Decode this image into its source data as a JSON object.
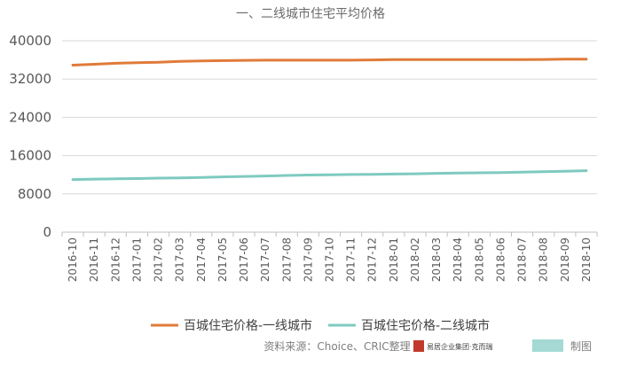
{
  "chart_data": {
    "type": "line",
    "title": "一、二线城市住宅平均价格",
    "categories": [
      "2016-10",
      "2016-11",
      "2016-12",
      "2017-01",
      "2017-02",
      "2017-03",
      "2017-04",
      "2017-05",
      "2017-06",
      "2017-07",
      "2017-08",
      "2017-09",
      "2017-10",
      "2017-11",
      "2017-12",
      "2018-01",
      "2018-02",
      "2018-03",
      "2018-04",
      "2018-05",
      "2018-06",
      "2018-07",
      "2018-08",
      "2018-09",
      "2018-10"
    ],
    "series": [
      {
        "name": "百城住宅价格-一线城市",
        "color": "#e07b39",
        "values": [
          34900,
          35100,
          35300,
          35400,
          35500,
          35700,
          35800,
          35850,
          35900,
          35950,
          35950,
          35950,
          35950,
          35950,
          36000,
          36050,
          36050,
          36050,
          36050,
          36050,
          36050,
          36050,
          36100,
          36150,
          36150
        ]
      },
      {
        "name": "百城住宅价格-二线城市",
        "color": "#7ecac0",
        "values": [
          11000,
          11100,
          11150,
          11200,
          11300,
          11350,
          11450,
          11550,
          11650,
          11750,
          11850,
          11950,
          12000,
          12050,
          12100,
          12150,
          12200,
          12300,
          12350,
          12400,
          12450,
          12550,
          12650,
          12750,
          12850
        ]
      }
    ],
    "yticks": [
      "40000",
      "32000",
      "24000",
      "16000",
      "8000",
      "0"
    ],
    "ylim": [
      0,
      40000
    ],
    "grid": "horizontal",
    "legend": "bottom"
  },
  "source": {
    "text": "资料来源：Choice、CRIC整理",
    "logo1_text": "易居企业集团·克而瑞",
    "logo2_text": "制图"
  }
}
